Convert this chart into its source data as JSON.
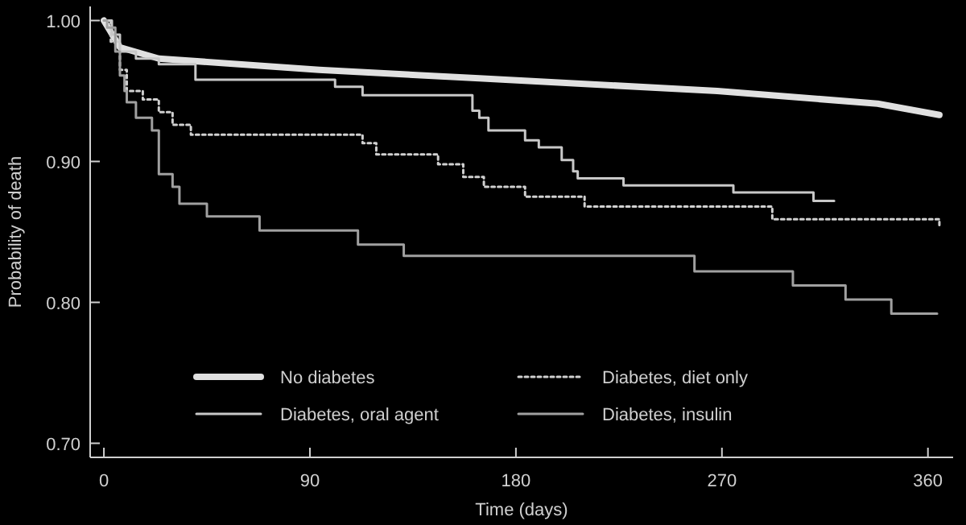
{
  "chart_data": {
    "type": "step",
    "xlabel": "Time (days)",
    "ylabel": "Probability of death",
    "xlim": [
      -6,
      371
    ],
    "ylim": [
      0.69,
      1.01
    ],
    "xticks": [
      0,
      90,
      180,
      270,
      360
    ],
    "yticks": [
      {
        "value": 0.7,
        "label": "0.70"
      },
      {
        "value": 0.8,
        "label": "0.80"
      },
      {
        "value": 0.9,
        "label": "0.90"
      },
      {
        "value": 1.0,
        "label": "1.00"
      }
    ],
    "legend": "bottom",
    "grid": false,
    "series": [
      {
        "name": "No diabetes",
        "type": "line",
        "color": "#e0e0e0",
        "line_style": "solid",
        "x": [
          0,
          7,
          24,
          94,
          164,
          268,
          338,
          365
        ],
        "values": [
          1.0,
          0.981,
          0.973,
          0.965,
          0.959,
          0.95,
          0.941,
          0.933
        ]
      },
      {
        "name": "Diabetes, diet only",
        "color": "#d0d0d0",
        "line_style": "dotted",
        "x": [
          0,
          3,
          7,
          10,
          17,
          24,
          30,
          38,
          113,
          119,
          146,
          157,
          166,
          184,
          210,
          292,
          365
        ],
        "values": [
          1.0,
          0.985,
          0.965,
          0.95,
          0.944,
          0.935,
          0.926,
          0.919,
          0.913,
          0.905,
          0.898,
          0.889,
          0.882,
          0.875,
          0.868,
          0.859,
          0.853
        ]
      },
      {
        "name": "Diabetes, oral agent",
        "color": "#c8c8c8",
        "line_style": "solid",
        "x": [
          0,
          3.5,
          7,
          14,
          24,
          40,
          101,
          113,
          134,
          161,
          164,
          168,
          184,
          190,
          200,
          205,
          207,
          227,
          275,
          310,
          319
        ],
        "values": [
          1.0,
          0.99,
          0.978,
          0.973,
          0.969,
          0.958,
          0.953,
          0.947,
          0.947,
          0.936,
          0.931,
          0.922,
          0.915,
          0.91,
          0.901,
          0.893,
          0.888,
          0.883,
          0.878,
          0.872,
          0.872
        ]
      },
      {
        "name": "Diabetes, insulin",
        "color": "#a0a0a0",
        "line_style": "solid",
        "x": [
          0,
          1.4,
          5,
          7,
          9,
          10,
          14,
          21,
          24,
          30,
          33,
          45,
          68,
          111,
          131,
          258,
          301,
          324,
          344,
          364
        ],
        "values": [
          1.0,
          0.995,
          0.978,
          0.961,
          0.95,
          0.942,
          0.931,
          0.922,
          0.891,
          0.882,
          0.87,
          0.861,
          0.851,
          0.841,
          0.833,
          0.822,
          0.812,
          0.802,
          0.792,
          0.792
        ]
      }
    ]
  }
}
